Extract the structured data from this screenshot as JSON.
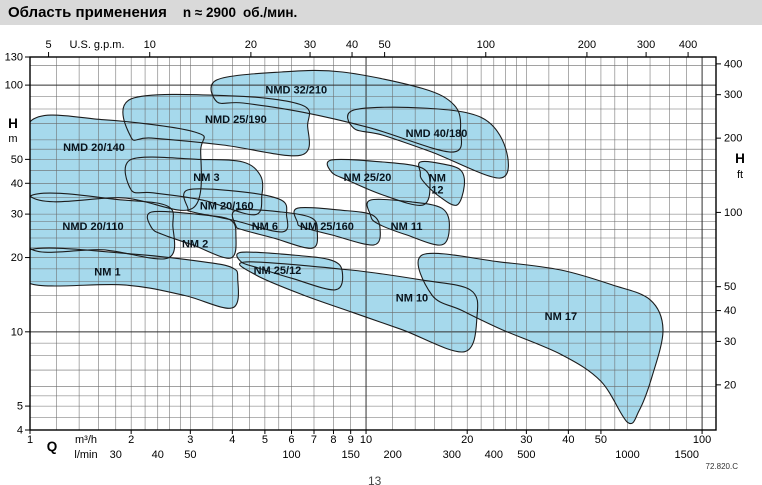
{
  "title": {
    "main": "Область применения",
    "speed": "n ≈ 2900",
    "unit": "об./мин."
  },
  "footer": {
    "doc_code": "72.820.C",
    "page": "13"
  },
  "style": {
    "region_fill": "#a6d9ec",
    "region_stroke": "#1c1c1c",
    "grid_minor": "#6a6a6a",
    "grid_major": "#2f2f2f",
    "titlebar_bg": "#d9d9d9"
  },
  "chart_data": {
    "type": "area",
    "title": "Область применения n ≈ 2900 об./мин.",
    "xlabel": "Q (m³/h)",
    "ylabel": "H (m)",
    "x_scale": "log",
    "y_scale": "log",
    "x_range": [
      1,
      110
    ],
    "y_range": [
      4,
      130
    ],
    "grid": true,
    "axes": {
      "top": {
        "label": "U.S. g.p.m.",
        "ticks": [
          5,
          10,
          20,
          30,
          40,
          50,
          100,
          200,
          300,
          400
        ]
      },
      "left": {
        "letter": "H",
        "unit": "m",
        "ticks": [
          130,
          100,
          50,
          40,
          30,
          20,
          10,
          5,
          4
        ]
      },
      "right": {
        "letter": "H",
        "unit": "ft",
        "ticks": [
          400,
          300,
          200,
          100,
          50,
          40,
          30,
          20
        ]
      },
      "bottom": {
        "letter": "Q",
        "rows": [
          {
            "unit": "m³/h",
            "ticks": [
              1,
              2,
              3,
              4,
              5,
              6,
              7,
              8,
              9,
              10,
              20,
              30,
              40,
              50,
              100
            ]
          },
          {
            "unit": "l/min",
            "ticks": [
              30,
              40,
              50,
              100,
              150,
              200,
              300,
              400,
              500,
              1000,
              1500
            ]
          }
        ]
      }
    },
    "regions": [
      {
        "name": "NMD 20/140",
        "label_at": [
          1.55,
          56
        ],
        "points": [
          [
            1,
            71
          ],
          [
            1.65,
            72.4
          ],
          [
            3.1,
            64.5
          ],
          [
            3.22,
            54.6
          ],
          [
            3.05,
            31.7
          ],
          [
            1.9,
            34.9
          ],
          [
            1,
            35.5
          ]
        ]
      },
      {
        "name": "NMD 25/190",
        "label_at": [
          4.1,
          73
        ],
        "points": [
          [
            2,
            87.9
          ],
          [
            4,
            90.4
          ],
          [
            6.45,
            83
          ],
          [
            6.7,
            68.8
          ],
          [
            6.4,
            52
          ],
          [
            3.75,
            57.2
          ],
          [
            2.3,
            61
          ],
          [
            2,
            61.3
          ]
        ]
      },
      {
        "name": "NMD 32/210",
        "label_at": [
          6.2,
          96
        ],
        "points": [
          [
            3.6,
            105
          ],
          [
            5.6,
            113
          ],
          [
            8.5,
            113
          ],
          [
            14.7,
            97
          ],
          [
            18.3,
            83
          ],
          [
            19.1,
            66.8
          ],
          [
            18,
            53.5
          ],
          [
            10.4,
            66.8
          ],
          [
            6.5,
            77.6
          ],
          [
            4.3,
            84.6
          ],
          [
            3.6,
            85.6
          ]
        ]
      },
      {
        "name": "NMD 40/180",
        "label_at": [
          16.2,
          64
        ],
        "points": [
          [
            9.2,
            79.3
          ],
          [
            14.7,
            80.8
          ],
          [
            22,
            74
          ],
          [
            26,
            55.6
          ],
          [
            25,
            42
          ],
          [
            15.7,
            53.5
          ],
          [
            11.2,
            62.7
          ],
          [
            9.2,
            66.8
          ]
        ]
      },
      {
        "name": "NM 3",
        "label_at": [
          3.35,
          42.5
        ],
        "points": [
          [
            2,
            50
          ],
          [
            3.2,
            50
          ],
          [
            4.3,
            48.8
          ],
          [
            4.85,
            43
          ],
          [
            4.9,
            35.9
          ],
          [
            4.65,
            29.8
          ],
          [
            3.26,
            34.2
          ],
          [
            2.32,
            36.6
          ],
          [
            2,
            37.6
          ]
        ]
      },
      {
        "name": "NM 25/20",
        "label_at": [
          10.1,
          42.5
        ],
        "points": [
          [
            7.9,
            49.7
          ],
          [
            11.2,
            48.8
          ],
          [
            14.7,
            46.1
          ],
          [
            15.5,
            39.4
          ],
          [
            14.7,
            32.6
          ],
          [
            11.2,
            35.9
          ],
          [
            8.8,
            41.2
          ],
          [
            7.9,
            44.4
          ]
        ]
      },
      {
        "name": "NM 12",
        "label_at": [
          16.3,
          40
        ],
        "label_lines": [
          "NM",
          "12"
        ],
        "points": [
          [
            14.5,
            48.8
          ],
          [
            16.8,
            48
          ],
          [
            19.1,
            45.3
          ],
          [
            19.6,
            39.1
          ],
          [
            18.6,
            32.6
          ],
          [
            16.3,
            35.9
          ],
          [
            14.7,
            41.2
          ],
          [
            14.5,
            44.4
          ]
        ]
      },
      {
        "name": "NM 20/160",
        "label_at": [
          3.85,
          32.5
        ],
        "points": [
          [
            2.95,
            37.6
          ],
          [
            4.3,
            36.9
          ],
          [
            5.6,
            34.2
          ],
          [
            5.8,
            29.8
          ],
          [
            5.63,
            25.4
          ],
          [
            4,
            28.4
          ],
          [
            3.05,
            30.6
          ],
          [
            2.95,
            31.7
          ]
        ]
      },
      {
        "name": "NMD 20/110",
        "label_at": [
          1.54,
          26.8
        ],
        "points": [
          [
            1,
            35.5
          ],
          [
            1.9,
            34.2
          ],
          [
            2.57,
            32.3
          ],
          [
            2.66,
            27.1
          ],
          [
            2.57,
            19.9
          ],
          [
            1.65,
            21.5
          ],
          [
            1,
            21.8
          ]
        ]
      },
      {
        "name": "NM 6",
        "label_at": [
          5,
          26.8
        ],
        "points": [
          [
            4.1,
            31.1
          ],
          [
            5.6,
            30.6
          ],
          [
            6.9,
            28.9
          ],
          [
            7.16,
            25.4
          ],
          [
            6.9,
            21.8
          ],
          [
            5.3,
            24
          ],
          [
            4.3,
            25.9
          ],
          [
            4.1,
            26.9
          ]
        ]
      },
      {
        "name": "NM 25/160",
        "label_at": [
          7.65,
          26.8
        ],
        "points": [
          [
            6.25,
            31.7
          ],
          [
            8.5,
            31.1
          ],
          [
            10.4,
            29.8
          ],
          [
            11,
            26.4
          ],
          [
            10.55,
            22.5
          ],
          [
            7.9,
            24.7
          ],
          [
            6.46,
            26.6
          ],
          [
            6.25,
            27.8
          ]
        ]
      },
      {
        "name": "NM 11",
        "label_at": [
          13.2,
          26.8
        ],
        "points": [
          [
            10.3,
            34.2
          ],
          [
            13.7,
            33.6
          ],
          [
            16.8,
            31.7
          ],
          [
            17.7,
            27.1
          ],
          [
            16.8,
            22.5
          ],
          [
            13.2,
            24.7
          ],
          [
            10.8,
            27.5
          ],
          [
            10.3,
            29.8
          ]
        ]
      },
      {
        "name": "NM 2",
        "label_at": [
          3.1,
          22.8
        ],
        "points": [
          [
            2.3,
            30.6
          ],
          [
            3.26,
            29.8
          ],
          [
            3.95,
            28.4
          ],
          [
            4.1,
            24.7
          ],
          [
            3.95,
            19.9
          ],
          [
            3.05,
            22.5
          ],
          [
            2.5,
            24.7
          ],
          [
            2.3,
            26.4
          ]
        ]
      },
      {
        "name": "NM 25/12",
        "label_at": [
          5.45,
          17.8
        ],
        "points": [
          [
            4.25,
            21
          ],
          [
            6,
            20.5
          ],
          [
            7.9,
            19.5
          ],
          [
            8.5,
            17.5
          ],
          [
            8.1,
            14.8
          ],
          [
            6,
            16.5
          ],
          [
            4.75,
            18.2
          ],
          [
            4.25,
            19.2
          ]
        ]
      },
      {
        "name": "NM 1",
        "label_at": [
          1.7,
          17.6
        ],
        "points": [
          [
            1,
            21.5
          ],
          [
            2,
            20.7
          ],
          [
            3.3,
            19.2
          ],
          [
            4,
            18.2
          ],
          [
            4.15,
            16.5
          ],
          [
            4,
            12.5
          ],
          [
            2.85,
            14.1
          ],
          [
            1.9,
            15.5
          ],
          [
            1,
            15.7
          ]
        ]
      },
      {
        "name": "NM 10",
        "label_at": [
          13.7,
          13.8
        ],
        "points": [
          [
            4.4,
            19.2
          ],
          [
            9,
            17.8
          ],
          [
            14.7,
            16.2
          ],
          [
            20.4,
            14.8
          ],
          [
            21.4,
            11.7
          ],
          [
            19.6,
            8.3
          ],
          [
            12.8,
            10.2
          ],
          [
            9.1,
            12
          ],
          [
            6.5,
            14.1
          ],
          [
            4.7,
            17
          ]
        ]
      },
      {
        "name": "NM 17",
        "label_at": [
          38,
          11.6
        ],
        "points": [
          [
            14.7,
            20.5
          ],
          [
            25,
            19.2
          ],
          [
            38,
            17.8
          ],
          [
            54,
            15.5
          ],
          [
            70,
            13.5
          ],
          [
            76.5,
            10.2
          ],
          [
            71,
            6.6
          ],
          [
            65,
            4.8
          ],
          [
            60,
            4.3
          ],
          [
            50,
            6.3
          ],
          [
            38,
            8.1
          ],
          [
            25.4,
            10.2
          ],
          [
            19.3,
            12.2
          ],
          [
            15.7,
            14.1
          ]
        ]
      }
    ]
  }
}
